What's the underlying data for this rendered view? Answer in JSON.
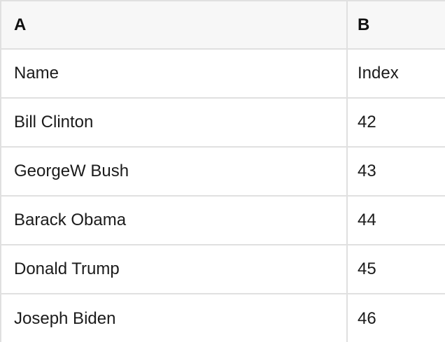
{
  "sheet": {
    "column_headers": [
      "A",
      "B"
    ],
    "rows": [
      [
        "Name",
        "Index"
      ],
      [
        "Bill Clinton",
        "42"
      ],
      [
        "GeorgeW Bush",
        "43"
      ],
      [
        "Barack Obama",
        "44"
      ],
      [
        "Donald Trump",
        "45"
      ],
      [
        "Joseph Biden",
        "46"
      ]
    ],
    "colors": {
      "grid_border": "#e0e0e0",
      "header_background": "#f7f7f7",
      "text": "#1b1b1b"
    }
  }
}
